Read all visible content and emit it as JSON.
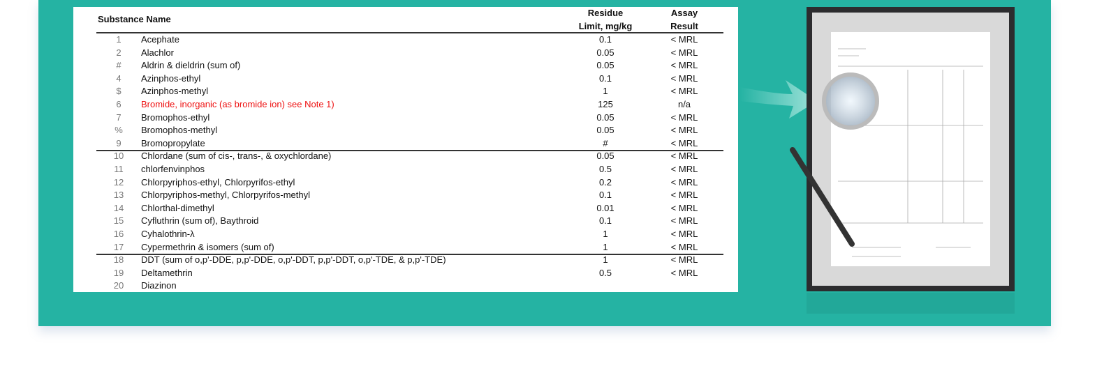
{
  "table": {
    "header": {
      "name": "Substance Name",
      "limit": [
        "Residue",
        "Limit, mg/kg"
      ],
      "result": [
        "Assay",
        "Result"
      ]
    },
    "rows": [
      {
        "no": "1",
        "name": "Acephate",
        "limit": "0.1",
        "result": "< MRL"
      },
      {
        "no": "2",
        "name": "Alachlor",
        "limit": "0.05",
        "result": "< MRL"
      },
      {
        "no": "#",
        "name": "Aldrin & dieldrin (sum of)",
        "limit": "0.05",
        "result": "< MRL"
      },
      {
        "no": "4",
        "name": "Azinphos-ethyl",
        "limit": "0.1",
        "result": "< MRL"
      },
      {
        "no": "$",
        "name": "Azinphos-methyl",
        "limit": "1",
        "result": "< MRL"
      },
      {
        "no": "6",
        "name": "Bromide, inorganic (as bromide ion) see Note 1)",
        "limit": "125",
        "result": "n/a",
        "color": "#ee1111"
      },
      {
        "no": "7",
        "name": "Bromophos-ethyl",
        "limit": "0.05",
        "result": "< MRL"
      },
      {
        "no": "%",
        "name": "Bromophos-methyl",
        "limit": "0.05",
        "result": "< MRL"
      },
      {
        "no": "9",
        "name": "Bromopropylate",
        "limit": "#",
        "result": "< MRL",
        "separator": true
      },
      {
        "no": "10",
        "name": "Chlordane (sum of cis-, trans-, & oxychlordane)",
        "limit": "0.05",
        "result": "< MRL"
      },
      {
        "no": "11",
        "name": "chlorfenvinphos",
        "limit": "0.5",
        "result": "< MRL"
      },
      {
        "no": "12",
        "name": "Chlorpyriphos-ethyl, Chlorpyrifos-ethyl",
        "limit": "0.2",
        "result": "< MRL"
      },
      {
        "no": "13",
        "name": "Chlorpyriphos-methyl, Chlorpyrifos-methyl",
        "limit": "0.1",
        "result": "< MRL"
      },
      {
        "no": "14",
        "name": "Chlorthal-dimethyl",
        "limit": "0.01",
        "result": "< MRL"
      },
      {
        "no": "15",
        "name": "Cyfluthrin (sum of), Baythroid",
        "limit": "0.1",
        "result": "< MRL"
      },
      {
        "no": "16",
        "name": "Cyhalothrin-λ",
        "limit": "1",
        "result": "< MRL"
      },
      {
        "no": "17",
        "name": "Cypermethrin & isomers (sum of)",
        "limit": "1",
        "result": "< MRL",
        "separator": true
      },
      {
        "no": "18",
        "name": "DDT (sum of o,p'-DDE, p,p'-DDE, o,p'-DDT, p,p'-DDT, o,p'-TDE, & p,p'-TDE)",
        "limit": "1",
        "result": "< MRL"
      },
      {
        "no": "19",
        "name": "Deltamethrin",
        "limit": "0.5",
        "result": "< MRL"
      },
      {
        "no": "20",
        "name": "Diazinon"
      }
    ]
  }
}
